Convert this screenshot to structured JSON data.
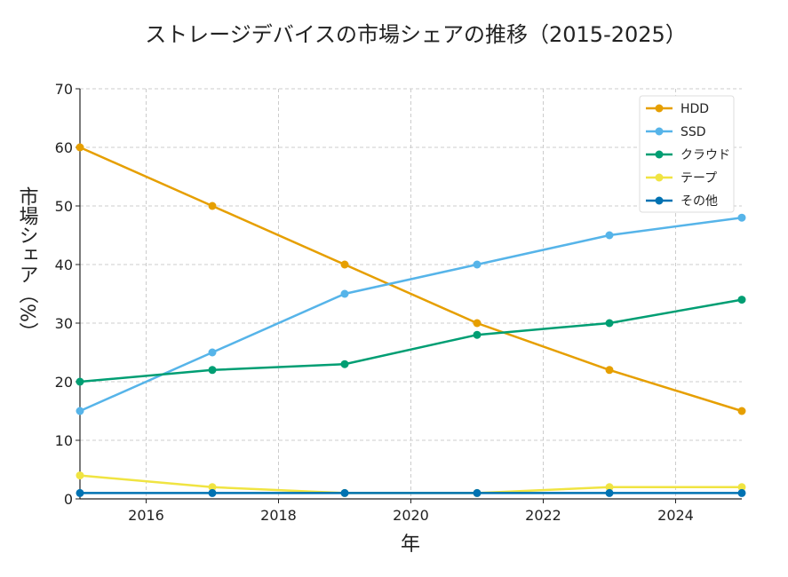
{
  "chart_data": {
    "type": "line",
    "title": "ストレージデバイスの市場シェアの推移（2015-2025）",
    "xlabel": "年",
    "ylabel": "市場シェア（%）",
    "x": [
      2015,
      2017,
      2019,
      2021,
      2023,
      2025
    ],
    "xlim": [
      2015,
      2025
    ],
    "ylim": [
      0,
      70
    ],
    "xticks": [
      2016,
      2018,
      2020,
      2022,
      2024
    ],
    "yticks": [
      0,
      10,
      20,
      30,
      40,
      50,
      60,
      70
    ],
    "grid": true,
    "legend_position": "top-right",
    "series": [
      {
        "name": "HDD",
        "color": "#E69F00",
        "values": [
          60,
          50,
          40,
          30,
          22,
          15
        ]
      },
      {
        "name": "SSD",
        "color": "#56B4E9",
        "values": [
          15,
          25,
          35,
          40,
          45,
          48
        ]
      },
      {
        "name": "クラウド",
        "color": "#009E73",
        "values": [
          20,
          22,
          23,
          28,
          30,
          34
        ]
      },
      {
        "name": "テープ",
        "color": "#F0E442",
        "values": [
          4,
          2,
          1,
          1,
          2,
          2
        ]
      },
      {
        "name": "その他",
        "color": "#0072B2",
        "values": [
          1,
          1,
          1,
          1,
          1,
          1
        ]
      }
    ]
  }
}
